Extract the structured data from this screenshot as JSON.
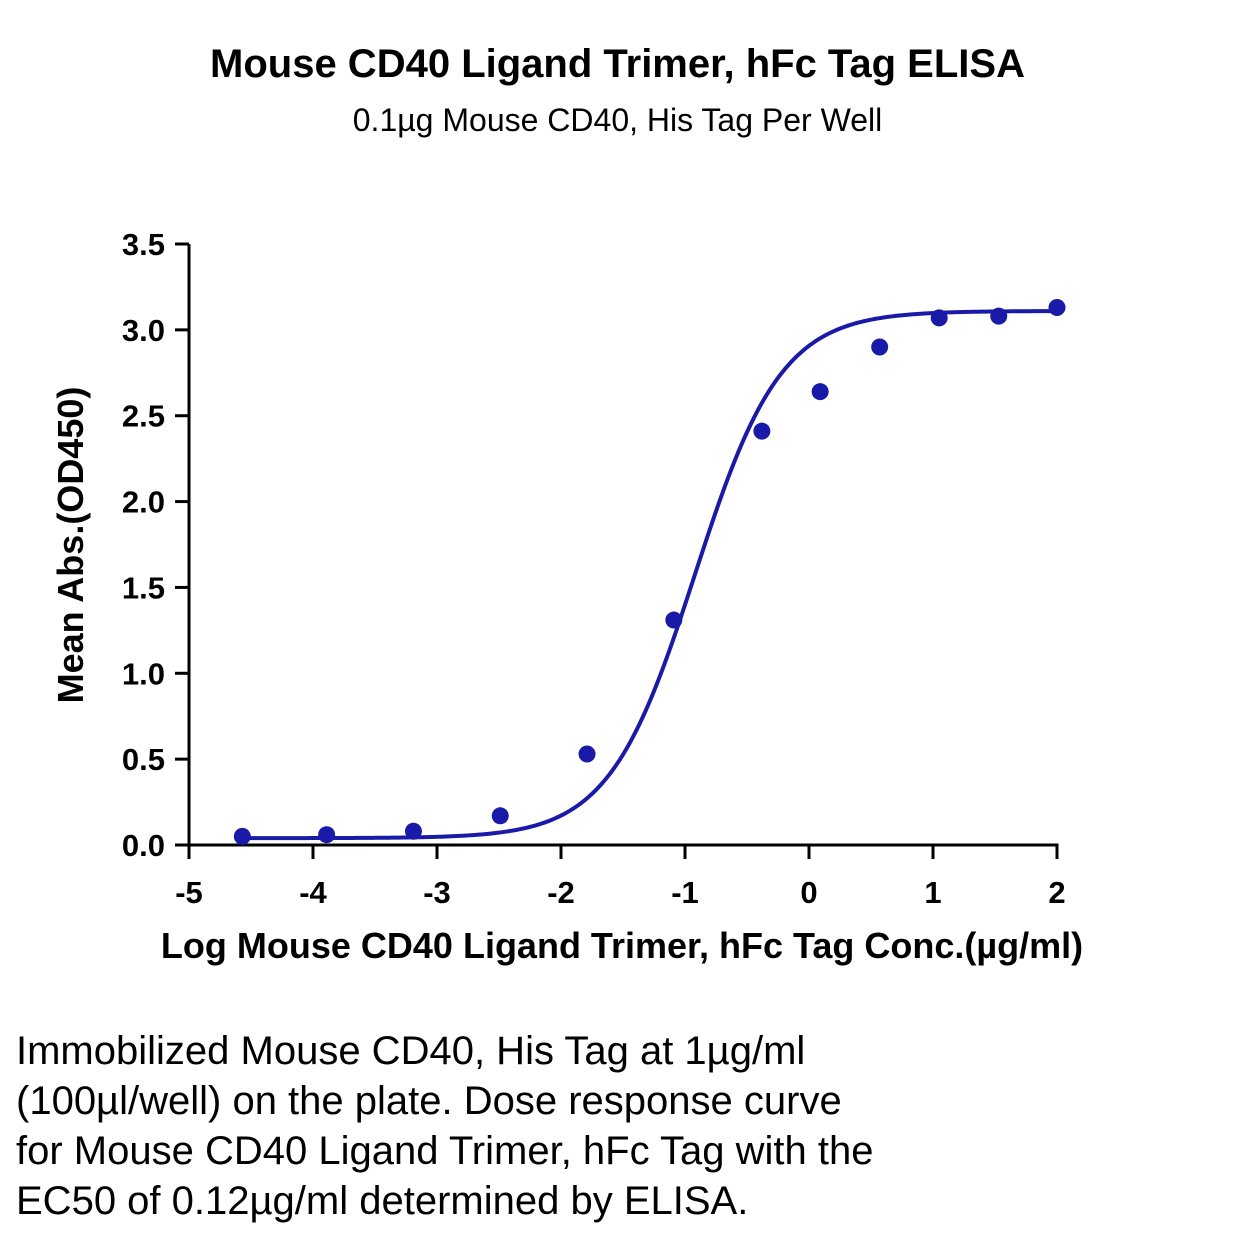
{
  "chart_data": {
    "type": "scatter",
    "title": "Mouse CD40 Ligand Trimer, hFc Tag ELISA",
    "subtitle": "0.1µg Mouse CD40, His Tag Per Well",
    "xlabel": "Log Mouse CD40 Ligand Trimer, hFc Tag Conc.(µg/ml)",
    "ylabel": "Mean Abs.(OD450)",
    "xlim": [
      -5,
      2
    ],
    "ylim": [
      0,
      3.5
    ],
    "x_ticks": [
      "-5",
      "-4",
      "-3",
      "-2",
      "-1",
      "0",
      "1",
      "2"
    ],
    "y_ticks": [
      "0.0",
      "0.5",
      "1.0",
      "1.5",
      "2.0",
      "2.5",
      "3.0",
      "3.5"
    ],
    "grid": false,
    "color": "#1a1aa8",
    "points": {
      "x": [
        -4.57,
        -3.89,
        -3.19,
        -2.49,
        -1.79,
        -1.09,
        -0.38,
        0.09,
        0.57,
        1.05,
        1.53,
        2.0
      ],
      "y": [
        0.05,
        0.06,
        0.08,
        0.17,
        0.53,
        1.31,
        2.41,
        2.64,
        2.9,
        3.07,
        3.08,
        3.13
      ]
    },
    "fit_curve": {
      "model": "4PL",
      "bottom": 0.04,
      "top": 3.11,
      "log_ec50": -0.92,
      "hill_slope": 1.25
    }
  },
  "caption": {
    "lines": [
      "Immobilized Mouse CD40, His Tag at 1µg/ml",
      "(100µl/well) on the plate. Dose response curve",
      "for Mouse CD40 Ligand Trimer, hFc Tag with the",
      "EC50 of 0.12µg/ml determined by ELISA."
    ]
  }
}
